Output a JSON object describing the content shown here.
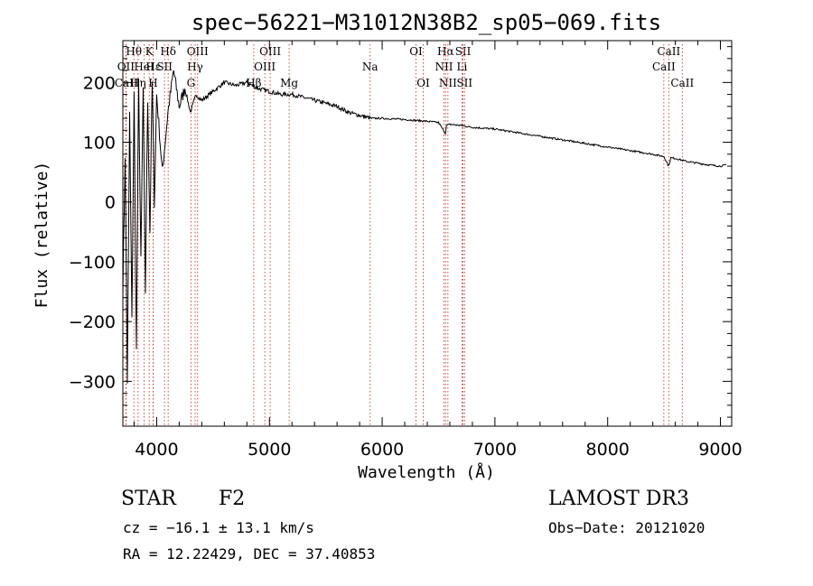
{
  "chart_data": {
    "type": "line",
    "title": "spec−56221−M31012N38B2_sp05−069.fits",
    "xlabel": "Wavelength (Å)",
    "ylabel": "Flux (relative)",
    "xlim": [
      3700,
      9100
    ],
    "ylim": [
      -375,
      270
    ],
    "xticks": [
      4000,
      5000,
      6000,
      7000,
      8000,
      9000
    ],
    "xtick_labels": [
      "4000",
      "5000",
      "6000",
      "7000",
      "8000",
      "9000"
    ],
    "yticks": [
      -300,
      -200,
      -100,
      0,
      100,
      200
    ],
    "ytick_labels": [
      "−300",
      "−200",
      "−100",
      "0",
      "100",
      "200"
    ],
    "series": [
      {
        "name": "spectrum",
        "x": [
          3700,
          3720,
          3740,
          3760,
          3780,
          3800,
          3820,
          3840,
          3860,
          3880,
          3900,
          3920,
          3940,
          3960,
          3980,
          4000,
          4050,
          4100,
          4150,
          4200,
          4250,
          4300,
          4350,
          4400,
          4500,
          4600,
          4700,
          4800,
          4900,
          5000,
          5100,
          5200,
          5300,
          5400,
          5500,
          5600,
          5700,
          5800,
          5900,
          6000,
          6200,
          6400,
          6500,
          6560,
          6570,
          6600,
          6700,
          6800,
          7000,
          7200,
          7400,
          7600,
          7800,
          8000,
          8200,
          8400,
          8500,
          8540,
          8560,
          8600,
          8660,
          8700,
          8800,
          8900,
          9000,
          9050
        ],
        "y": [
          -150,
          80,
          -300,
          150,
          -200,
          180,
          -250,
          200,
          -100,
          190,
          -150,
          170,
          -50,
          200,
          0,
          180,
          50,
          150,
          220,
          160,
          190,
          150,
          180,
          170,
          185,
          200,
          195,
          200,
          190,
          185,
          180,
          180,
          175,
          170,
          165,
          160,
          150,
          145,
          140,
          140,
          138,
          135,
          133,
          115,
          128,
          130,
          128,
          125,
          122,
          116,
          110,
          104,
          98,
          92,
          86,
          80,
          76,
          60,
          74,
          73,
          70,
          68,
          65,
          62,
          60,
          62
        ]
      }
    ],
    "line_markers": [
      {
        "label": "Hθ",
        "x": 3798,
        "row": 1
      },
      {
        "label": "OII",
        "x": 3727,
        "row": 2
      },
      {
        "label": "Hη",
        "x": 3835,
        "row": 3
      },
      {
        "label": "CaII",
        "x": 3730,
        "row": 3
      },
      {
        "label": "K",
        "x": 3934,
        "row": 1
      },
      {
        "label": "HeI",
        "x": 3889,
        "row": 2
      },
      {
        "label": "H",
        "x": 3968,
        "row": 3
      },
      {
        "label": "Hε",
        "x": 3970,
        "row": 2
      },
      {
        "label": "Hδ",
        "x": 4102,
        "row": 1
      },
      {
        "label": "SII",
        "x": 4070,
        "row": 2
      },
      {
        "label": "OIII",
        "x": 4363,
        "row": 1
      },
      {
        "label": "Hγ",
        "x": 4341,
        "row": 2
      },
      {
        "label": "G",
        "x": 4304,
        "row": 3
      },
      {
        "label": "Hβ",
        "x": 4861,
        "row": 3
      },
      {
        "label": "OIII",
        "x": 4959,
        "row": 2
      },
      {
        "label": "OIII",
        "x": 5007,
        "row": 1
      },
      {
        "label": "Mg",
        "x": 5175,
        "row": 3
      },
      {
        "label": "Na",
        "x": 5893,
        "row": 2
      },
      {
        "label": "OI",
        "x": 6300,
        "row": 1
      },
      {
        "label": "OI",
        "x": 6364,
        "row": 3
      },
      {
        "label": "Hα",
        "x": 6563,
        "row": 1
      },
      {
        "label": "NII",
        "x": 6548,
        "row": 2
      },
      {
        "label": "NII",
        "x": 6583,
        "row": 3
      },
      {
        "label": "SII",
        "x": 6717,
        "row": 1
      },
      {
        "label": "Li",
        "x": 6708,
        "row": 2
      },
      {
        "label": "SII",
        "x": 6731,
        "row": 3
      },
      {
        "label": "CaII",
        "x": 8542,
        "row": 1
      },
      {
        "label": "CaII",
        "x": 8498,
        "row": 2
      },
      {
        "label": "CaII",
        "x": 8662,
        "row": 3
      }
    ]
  },
  "info": {
    "object_type": "STAR",
    "subclass": "F2",
    "survey": "LAMOST DR3",
    "cz": "cz = −16.1 ± 13.1 km/s",
    "obs_date": "Obs−Date: 20121020",
    "coords": "RA =  12.22429, DEC =  37.40853"
  }
}
